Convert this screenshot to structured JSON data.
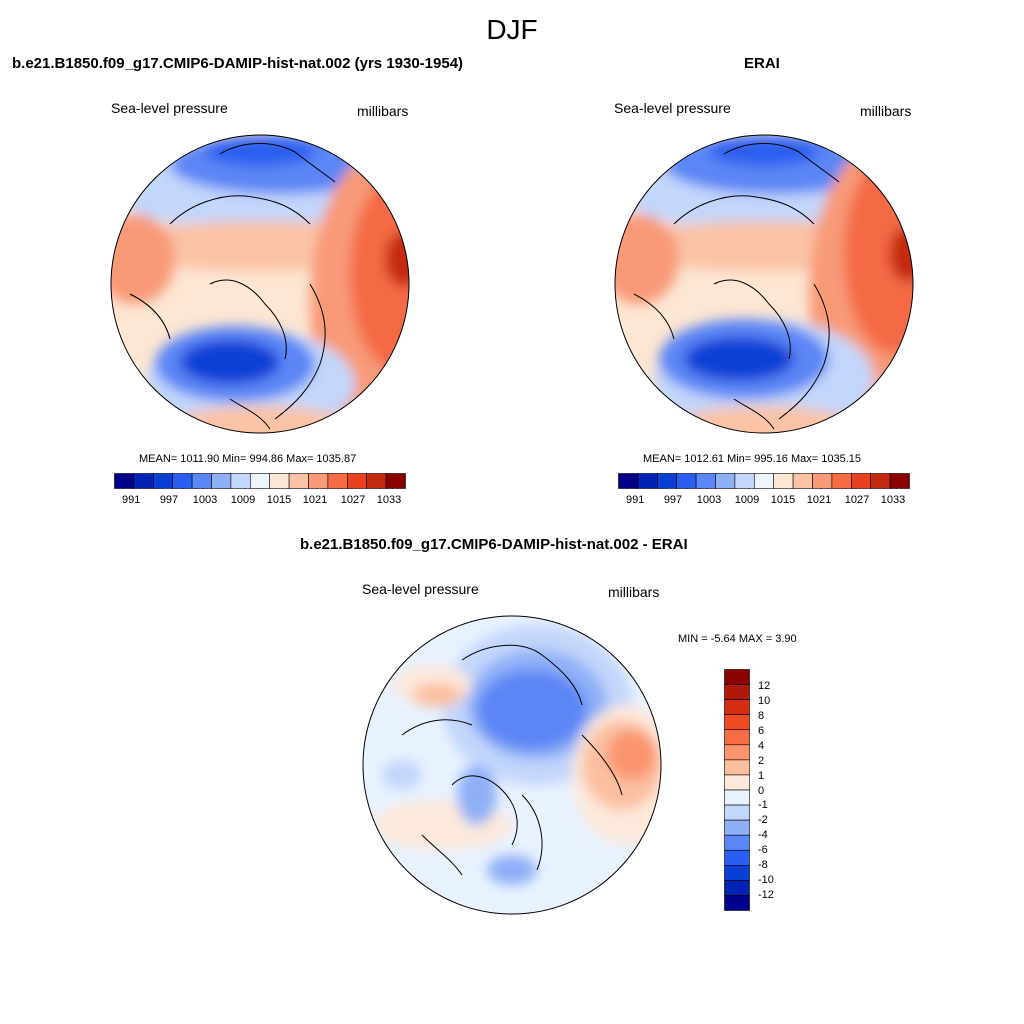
{
  "figure_title": "DJF",
  "panels": [
    {
      "id": "model",
      "title": "b.e21.B1850.f09_g17.CMIP6-DAMIP-hist-nat.002 (yrs 1930-1954)",
      "left_label": "Sea-level pressure",
      "right_label": "millibars",
      "stats": "MEAN= 1011.90  Min= 994.86  Max= 1035.87",
      "colorbar": {
        "ticks": [
          "991",
          "997",
          "1003",
          "1009",
          "1015",
          "1021",
          "1027",
          "1033"
        ],
        "colors": [
          "#00008b",
          "#0023b5",
          "#0a3fd6",
          "#2a5ef0",
          "#5b86f5",
          "#8fb0f7",
          "#c3d6fb",
          "#eef5ff",
          "#fde6d3",
          "#fbc3a6",
          "#f89a78",
          "#f46b44",
          "#e84120",
          "#c42a0f",
          "#8b0000"
        ]
      }
    },
    {
      "id": "obs",
      "title": "ERAI",
      "left_label": "Sea-level pressure",
      "right_label": "millibars",
      "stats": "MEAN= 1012.61  Min= 995.16  Max= 1035.15",
      "colorbar": {
        "ticks": [
          "991",
          "997",
          "1003",
          "1009",
          "1015",
          "1021",
          "1027",
          "1033"
        ],
        "colors": [
          "#00008b",
          "#0023b5",
          "#0a3fd6",
          "#2a5ef0",
          "#5b86f5",
          "#8fb0f7",
          "#c3d6fb",
          "#eef5ff",
          "#fde6d3",
          "#fbc3a6",
          "#f89a78",
          "#f46b44",
          "#e84120",
          "#c42a0f",
          "#8b0000"
        ]
      }
    },
    {
      "id": "diff",
      "title": "b.e21.B1850.f09_g17.CMIP6-DAMIP-hist-nat.002 - ERAI",
      "left_label": "Sea-level pressure",
      "right_label": "millibars",
      "stats": "MIN =  -5.64 MAX =   3.90",
      "colorbar": {
        "ticks": [
          "12",
          "10",
          "8",
          "6",
          "4",
          "2",
          "1",
          "0",
          "-1",
          "-2",
          "-4",
          "-6",
          "-8",
          "-10",
          "-12"
        ],
        "colors": [
          "#8b0000",
          "#b3170a",
          "#d42e12",
          "#ee4a22",
          "#f86c44",
          "#fa9570",
          "#fbbfa0",
          "#fde9dc",
          "#e8f2ff",
          "#c3d6fb",
          "#8fb0f7",
          "#5b86f5",
          "#2a5ef0",
          "#0a3fd6",
          "#0023b5",
          "#00008b"
        ]
      }
    }
  ]
}
